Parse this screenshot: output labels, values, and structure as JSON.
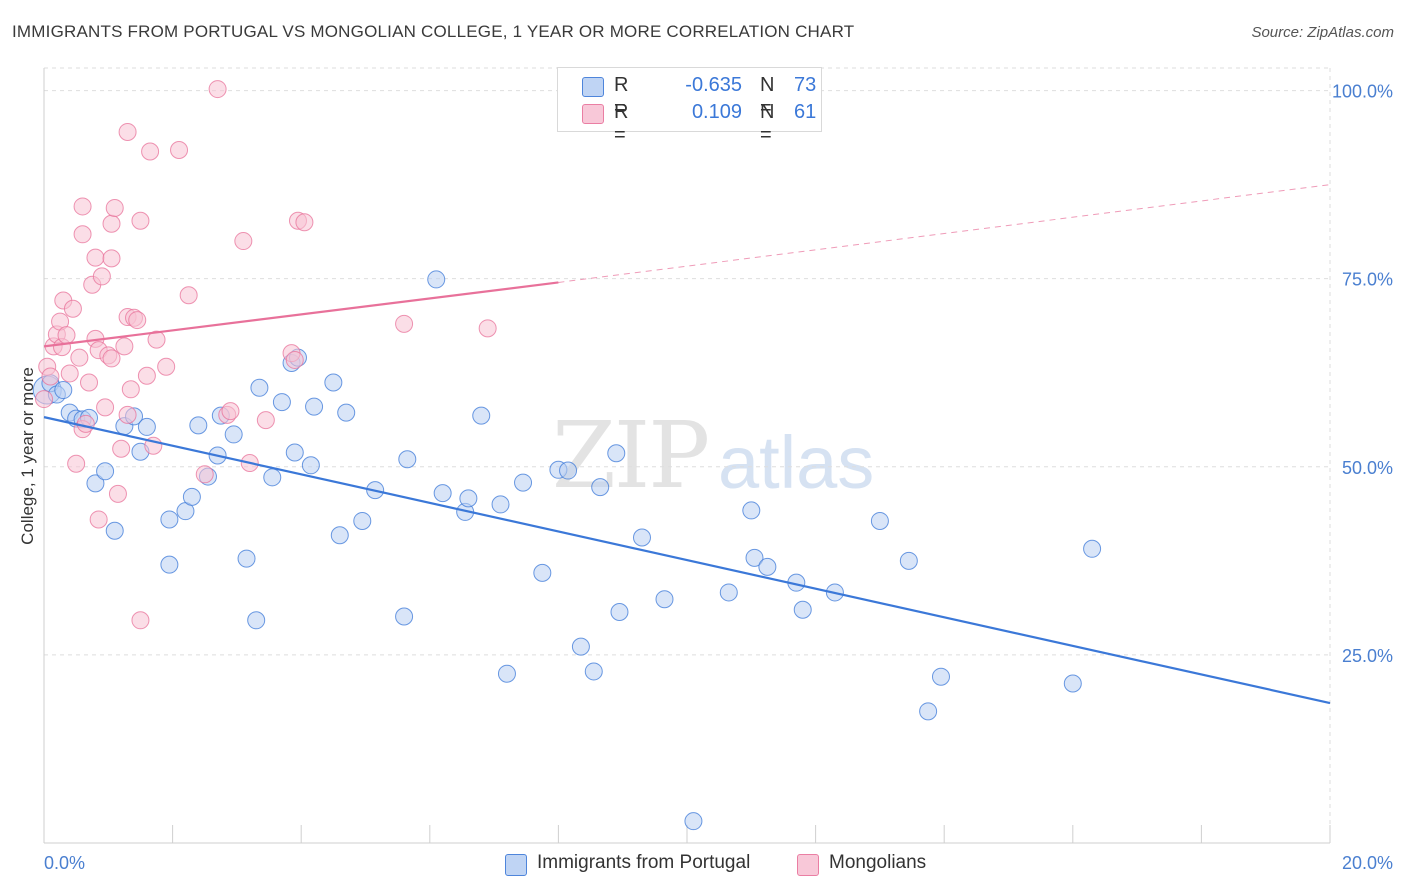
{
  "title": "IMMIGRANTS FROM PORTUGAL VS MONGOLIAN COLLEGE, 1 YEAR OR MORE CORRELATION CHART",
  "source": "Source: ZipAtlas.com",
  "watermark": {
    "zip": "ZIP",
    "atlas": "atlas"
  },
  "colors": {
    "blue": "#3b78d8",
    "blue_fill": "#b9d0f3",
    "pink": "#e8719a",
    "pink_fill": "#f8c3d4",
    "grid": "#dedede",
    "tick_label": "#4a7fd0"
  },
  "legend": {
    "rows": [
      {
        "r_label": "R =",
        "r_value": "-0.635",
        "n_label": "N =",
        "n_value": "73",
        "color": "#b9d0f3"
      },
      {
        "r_label": "R =",
        "r_value": "0.109",
        "n_label": "N =",
        "n_value": "61",
        "color": "#f8c3d4"
      }
    ]
  },
  "bottom_legend": [
    {
      "label": "Immigrants from Portugal",
      "color": "#b9d0f3"
    },
    {
      "label": "Mongolians",
      "color": "#f8c3d4"
    }
  ],
  "chart_data": {
    "type": "scatter",
    "title": "IMMIGRANTS FROM PORTUGAL VS MONGOLIAN COLLEGE, 1 YEAR OR MORE CORRELATION CHART",
    "xlabel": "",
    "ylabel": "College, 1 year or more",
    "xlim": [
      0,
      20
    ],
    "ylim": [
      0,
      103
    ],
    "x_tick_labels": [
      "0.0%",
      "20.0%"
    ],
    "y_ticks": [
      25,
      50,
      75,
      100
    ],
    "y_tick_labels": [
      "25.0%",
      "50.0%",
      "75.0%",
      "100.0%"
    ],
    "grid": true,
    "legend_position": "top-center",
    "series": [
      {
        "name": "Immigrants from Portugal",
        "color": "#3b78d8",
        "trend": {
          "x": [
            0,
            20
          ],
          "y": [
            56.6,
            18.6
          ],
          "dashed_after": null
        },
        "points": [
          [
            0.05,
            60.2
          ],
          [
            0.1,
            61.1
          ],
          [
            0.2,
            59.6
          ],
          [
            0.3,
            60.2
          ],
          [
            0.4,
            57.2
          ],
          [
            0.5,
            56.4
          ],
          [
            0.6,
            56.3
          ],
          [
            0.8,
            47.8
          ],
          [
            1.1,
            41.5
          ],
          [
            0.95,
            49.4
          ],
          [
            1.25,
            55.4
          ],
          [
            1.4,
            56.7
          ],
          [
            1.5,
            52.0
          ],
          [
            1.6,
            55.3
          ],
          [
            1.95,
            37.0
          ],
          [
            1.95,
            43.0
          ],
          [
            2.2,
            44.1
          ],
          [
            2.3,
            46.0
          ],
          [
            2.4,
            55.5
          ],
          [
            2.55,
            48.7
          ],
          [
            2.7,
            51.5
          ],
          [
            2.75,
            56.8
          ],
          [
            2.95,
            54.3
          ],
          [
            3.15,
            37.8
          ],
          [
            3.3,
            29.6
          ],
          [
            3.35,
            60.5
          ],
          [
            3.55,
            48.6
          ],
          [
            3.7,
            58.6
          ],
          [
            3.85,
            63.8
          ],
          [
            3.9,
            51.9
          ],
          [
            3.95,
            64.5
          ],
          [
            4.15,
            50.2
          ],
          [
            4.2,
            58.0
          ],
          [
            4.5,
            61.2
          ],
          [
            4.6,
            40.9
          ],
          [
            4.7,
            57.2
          ],
          [
            4.95,
            42.8
          ],
          [
            5.15,
            46.9
          ],
          [
            5.6,
            30.1
          ],
          [
            5.65,
            51.0
          ],
          [
            6.1,
            74.9
          ],
          [
            6.2,
            46.5
          ],
          [
            6.55,
            44.0
          ],
          [
            6.6,
            45.8
          ],
          [
            6.8,
            56.8
          ],
          [
            7.1,
            45.0
          ],
          [
            7.2,
            22.5
          ],
          [
            7.45,
            47.9
          ],
          [
            7.75,
            35.9
          ],
          [
            8.0,
            49.6
          ],
          [
            8.15,
            49.5
          ],
          [
            8.35,
            26.1
          ],
          [
            8.55,
            22.8
          ],
          [
            8.65,
            47.3
          ],
          [
            8.9,
            51.8
          ],
          [
            8.95,
            30.7
          ],
          [
            9.3,
            40.6
          ],
          [
            9.65,
            32.4
          ],
          [
            10.1,
            2.9
          ],
          [
            10.65,
            33.3
          ],
          [
            11.0,
            44.2
          ],
          [
            11.05,
            37.9
          ],
          [
            11.25,
            36.7
          ],
          [
            11.7,
            34.6
          ],
          [
            11.8,
            31.0
          ],
          [
            12.3,
            33.3
          ],
          [
            13.0,
            42.8
          ],
          [
            13.45,
            37.5
          ],
          [
            13.75,
            17.5
          ],
          [
            13.95,
            22.1
          ],
          [
            16.0,
            21.2
          ],
          [
            16.3,
            39.1
          ],
          [
            0.7,
            56.5
          ]
        ]
      },
      {
        "name": "Mongolians",
        "color": "#e8719a",
        "trend": {
          "x": [
            0,
            8
          ],
          "y": [
            66.0,
            74.5
          ],
          "dashed_to": [
            20,
            87.5
          ]
        },
        "points": [
          [
            0.05,
            63.3
          ],
          [
            0.1,
            62.0
          ],
          [
            0.15,
            66.0
          ],
          [
            0.2,
            67.6
          ],
          [
            0.25,
            69.3
          ],
          [
            0.28,
            65.9
          ],
          [
            0.3,
            72.1
          ],
          [
            0.35,
            67.5
          ],
          [
            0.4,
            62.4
          ],
          [
            0.45,
            71.0
          ],
          [
            0.5,
            50.4
          ],
          [
            0.55,
            64.5
          ],
          [
            0.6,
            55.0
          ],
          [
            0.65,
            55.7
          ],
          [
            0.6,
            80.9
          ],
          [
            0.6,
            84.6
          ],
          [
            0.7,
            61.2
          ],
          [
            0.75,
            74.2
          ],
          [
            0.8,
            67.0
          ],
          [
            0.8,
            77.8
          ],
          [
            0.85,
            65.5
          ],
          [
            0.85,
            43.0
          ],
          [
            0.9,
            75.3
          ],
          [
            0.95,
            57.9
          ],
          [
            1.0,
            64.8
          ],
          [
            1.05,
            77.7
          ],
          [
            1.05,
            64.4
          ],
          [
            1.05,
            82.3
          ],
          [
            1.1,
            84.4
          ],
          [
            1.15,
            46.4
          ],
          [
            1.2,
            52.4
          ],
          [
            1.25,
            66.0
          ],
          [
            1.3,
            69.9
          ],
          [
            1.3,
            56.9
          ],
          [
            1.3,
            94.5
          ],
          [
            1.35,
            60.3
          ],
          [
            1.4,
            69.8
          ],
          [
            1.45,
            69.5
          ],
          [
            1.5,
            82.7
          ],
          [
            1.5,
            29.6
          ],
          [
            1.6,
            62.1
          ],
          [
            1.65,
            91.9
          ],
          [
            1.7,
            52.8
          ],
          [
            1.75,
            66.9
          ],
          [
            1.9,
            63.3
          ],
          [
            2.1,
            92.1
          ],
          [
            2.25,
            72.8
          ],
          [
            2.5,
            49.0
          ],
          [
            2.7,
            100.2
          ],
          [
            2.85,
            56.9
          ],
          [
            2.9,
            57.4
          ],
          [
            3.1,
            80.0
          ],
          [
            3.2,
            50.5
          ],
          [
            3.45,
            56.2
          ],
          [
            3.85,
            65.1
          ],
          [
            3.9,
            64.2
          ],
          [
            3.95,
            82.7
          ],
          [
            4.05,
            82.5
          ],
          [
            5.6,
            69.0
          ],
          [
            6.9,
            68.4
          ],
          [
            0.0,
            59.0
          ]
        ]
      }
    ]
  }
}
